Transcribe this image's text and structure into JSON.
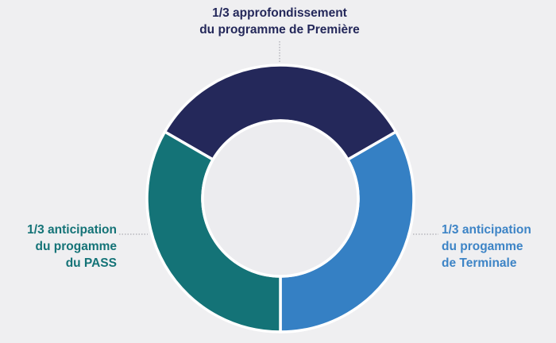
{
  "chart_data": {
    "type": "pie",
    "donut": true,
    "slices": [
      {
        "lines": [
          "1/3 approfondissement",
          "du programme de Première"
        ],
        "value": 33.33,
        "color": "#24285a",
        "text_color": "#24285a"
      },
      {
        "lines": [
          "1/3 anticipation",
          "du progamme",
          "de Terminale"
        ],
        "value": 33.33,
        "color": "#3580c4",
        "text_color": "#3d84c6"
      },
      {
        "lines": [
          "1/3 anticipation",
          "du progamme",
          "du PASS"
        ],
        "value": 33.33,
        "color": "#147377",
        "text_color": "#147377"
      }
    ],
    "hole_color": "#ececef"
  }
}
